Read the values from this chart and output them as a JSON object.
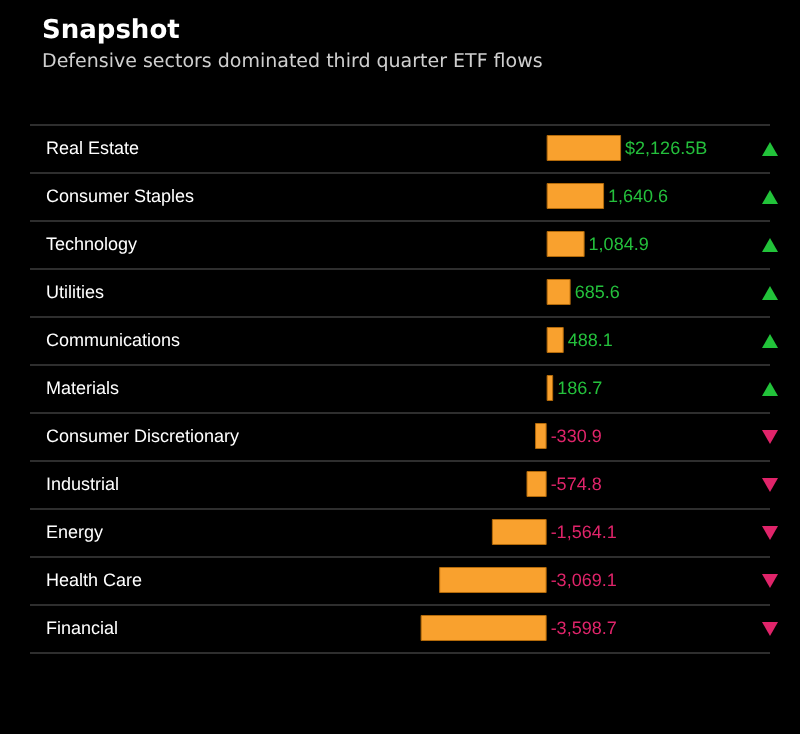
{
  "chart_data": {
    "type": "bar",
    "orientation": "horizontal",
    "title": "Snapshot",
    "subtitle": "Defensive sectors dominated third quarter ETF flows",
    "categories": [
      "Real Estate",
      "Consumer Staples",
      "Technology",
      "Utilities",
      "Communications",
      "Materials",
      "Consumer Discretionary",
      "Industrial",
      "Energy",
      "Health Care",
      "Financial"
    ],
    "values": [
      2126.5,
      1640.6,
      1084.9,
      685.6,
      488.1,
      186.7,
      -330.9,
      -574.8,
      -1564.1,
      -3069.1,
      -3598.7
    ],
    "value_labels": [
      "$2,126.5B",
      "1,640.6",
      "1,084.9",
      "685.6",
      "488.1",
      "186.7",
      "-330.9",
      "-574.8",
      "-1,564.1",
      "-3,069.1",
      "-3,598.7"
    ],
    "color": "#f9a12e",
    "grid": "y"
  }
}
